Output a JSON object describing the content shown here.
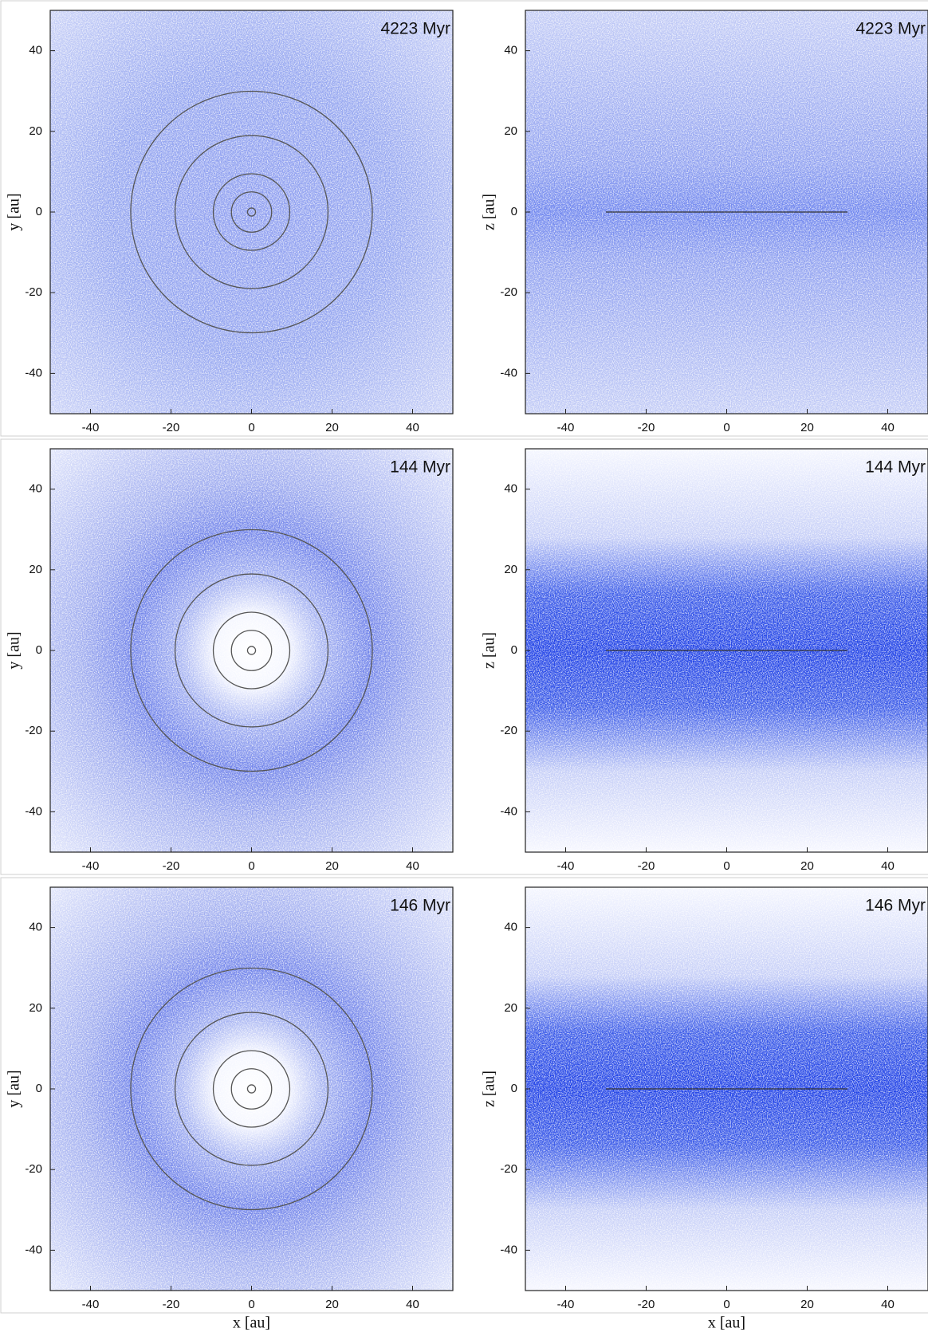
{
  "chart_data": [
    {
      "type": "face",
      "annotation": "4223 Myr",
      "ylabel": "y [au]",
      "xlim": [
        -50,
        50
      ],
      "ylim": [
        -50,
        50
      ],
      "xticks": [
        -40,
        -20,
        0,
        20,
        40
      ],
      "yticks": [
        -40,
        -20,
        0,
        20,
        40
      ],
      "orbit_radii": [
        1,
        5,
        9.5,
        19,
        30
      ]
    },
    {
      "type": "edge",
      "annotation": "4223 Myr",
      "ylabel": "z [au]",
      "xlim": [
        -50,
        50
      ],
      "ylim": [
        -50,
        50
      ],
      "xticks": [
        -40,
        -20,
        0,
        20,
        40
      ],
      "yticks": [
        -40,
        -20,
        0,
        20,
        40
      ],
      "line": {
        "x": [
          -30,
          30
        ],
        "y": [
          0,
          0
        ]
      }
    },
    {
      "type": "face",
      "annotation": "144 Myr",
      "ylabel": "y [au]",
      "xlim": [
        -50,
        50
      ],
      "ylim": [
        -50,
        50
      ],
      "xticks": [
        -40,
        -20,
        0,
        20,
        40
      ],
      "yticks": [
        -40,
        -20,
        0,
        20,
        40
      ],
      "orbit_radii": [
        1,
        5,
        9.5,
        19,
        30
      ]
    },
    {
      "type": "edge",
      "annotation": "144 Myr",
      "ylabel": "z [au]",
      "xlim": [
        -50,
        50
      ],
      "ylim": [
        -50,
        50
      ],
      "xticks": [
        -40,
        -20,
        0,
        20,
        40
      ],
      "yticks": [
        -40,
        -20,
        0,
        20,
        40
      ],
      "line": {
        "x": [
          -30,
          30
        ],
        "y": [
          0,
          0
        ]
      }
    },
    {
      "type": "face",
      "annotation": "146 Myr",
      "ylabel": "y [au]",
      "xlabel": "x [au]",
      "xlim": [
        -50,
        50
      ],
      "ylim": [
        -50,
        50
      ],
      "xticks": [
        -40,
        -20,
        0,
        20,
        40
      ],
      "yticks": [
        -40,
        -20,
        0,
        20,
        40
      ],
      "orbit_radii": [
        1,
        5,
        9.5,
        19,
        30
      ]
    },
    {
      "type": "edge",
      "annotation": "146 Myr",
      "ylabel": "z [au]",
      "xlabel": "x [au]",
      "xlim": [
        -50,
        50
      ],
      "ylim": [
        -50,
        50
      ],
      "xticks": [
        -40,
        -20,
        0,
        20,
        40
      ],
      "yticks": [
        -40,
        -20,
        0,
        20,
        40
      ],
      "line": {
        "x": [
          -30,
          30
        ],
        "y": [
          0,
          0
        ]
      }
    }
  ]
}
